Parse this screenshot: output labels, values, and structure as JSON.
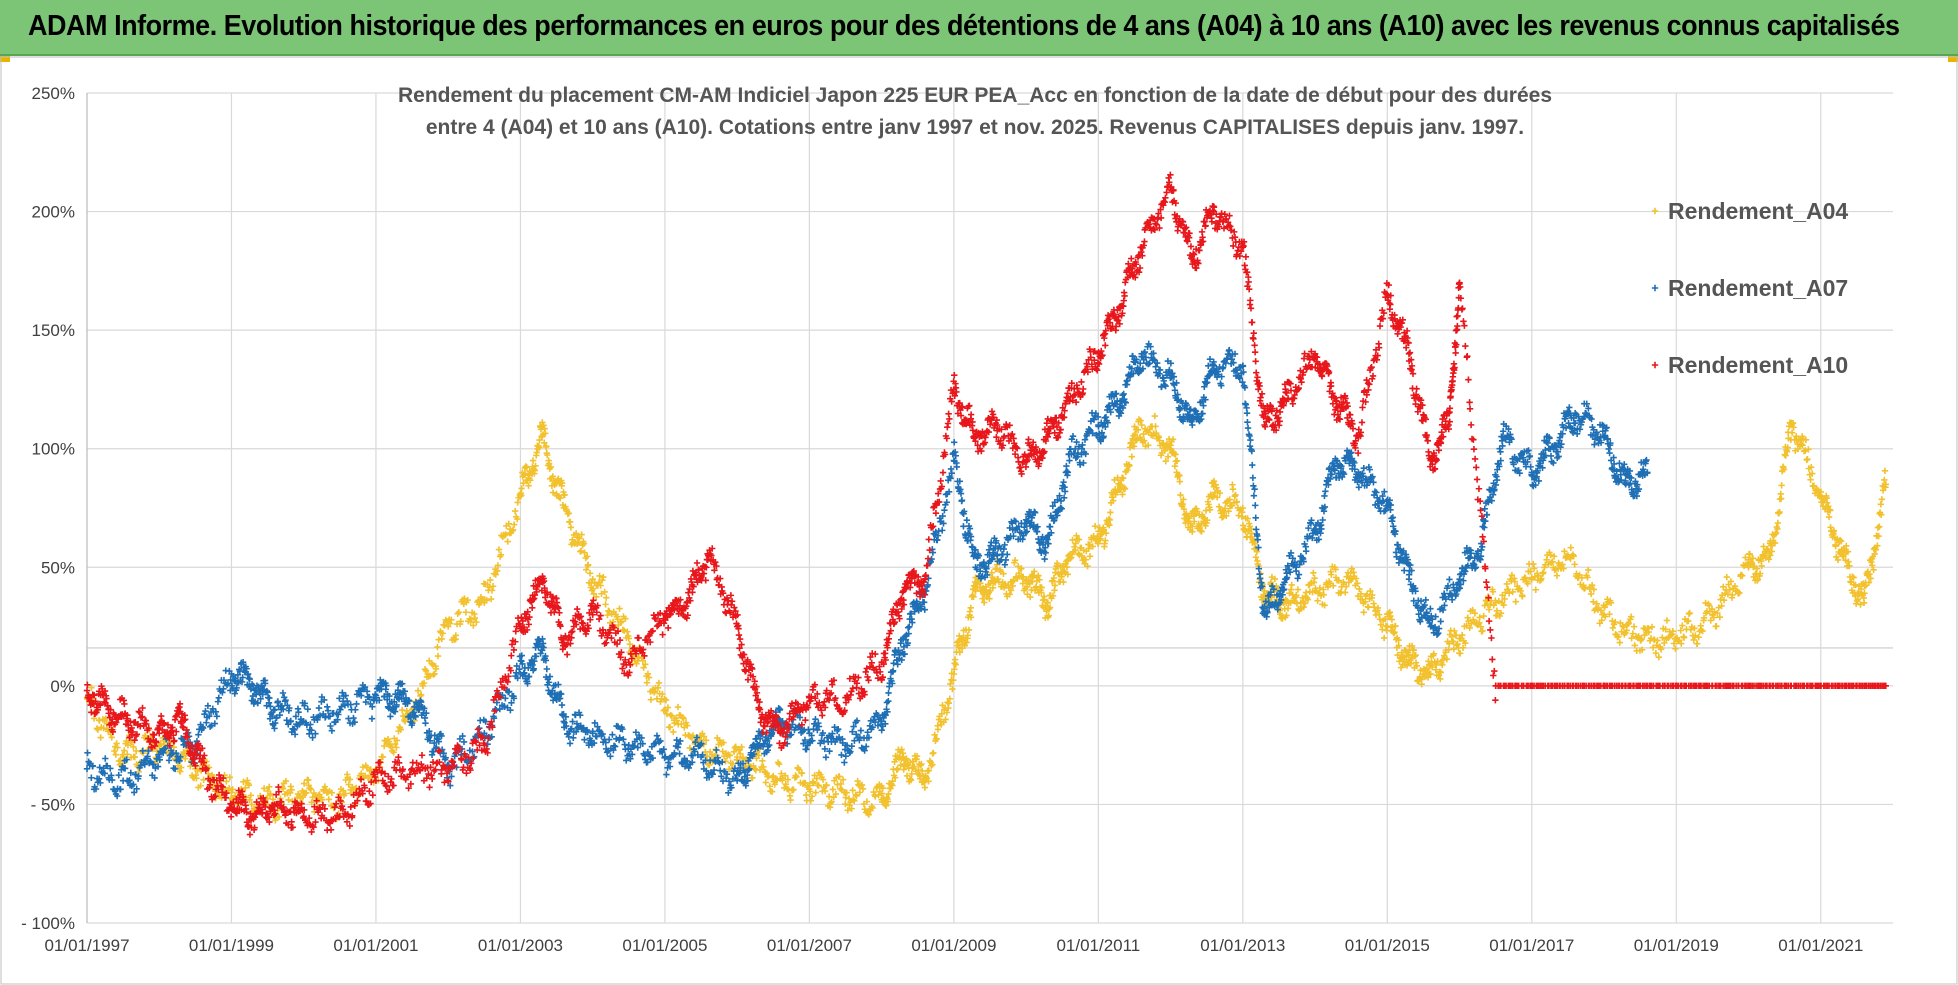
{
  "banner": {
    "title": "ADAM Informe. Evolution historique des performances en euros pour des détentions de 4 ans (A04) à 10 ans (A10) avec les revenus connus capitalisés"
  },
  "colors": {
    "banner_bg": "#7cc576",
    "series_A04": "#f2c12e",
    "series_A07": "#1f6fb5",
    "series_A10": "#e8171b",
    "grid": "#d9d9d9"
  },
  "chart_data": {
    "type": "scatter",
    "title_line1": "Rendement du placement CM-AM Indiciel Japon 225 EUR PEA_Acc en fonction de la date de début pour des durées",
    "title_line2": "entre 4 (A04) et 10 ans (A10). Cotations entre janv 1997 et nov. 2025. Revenus CAPITALISES depuis janv. 1997.",
    "xlabel": "",
    "ylabel": "",
    "x_tick_labels": [
      "01/01/1997",
      "01/01/1999",
      "01/01/2001",
      "01/01/2003",
      "01/01/2005",
      "01/01/2007",
      "01/01/2009",
      "01/01/2011",
      "01/01/2013",
      "01/01/2015",
      "01/01/2017",
      "01/01/2019",
      "01/01/2021"
    ],
    "x_range": [
      "1997-01-01",
      "2022-01-01"
    ],
    "y_tick_labels": [
      "250%",
      "200%",
      "150%",
      "100%",
      "50%",
      "0%",
      "- 50%",
      "- 100%"
    ],
    "ylim": [
      -100,
      250
    ],
    "grid": true,
    "legend_position": "top-right",
    "series": [
      {
        "name": "Rendement_A04",
        "color": "#f2c12e",
        "x": [
          1997.0,
          1997.5,
          1998.0,
          1998.5,
          1999.0,
          1999.5,
          2000.0,
          2000.5,
          2001.0,
          2001.5,
          2002.0,
          2002.5,
          2003.0,
          2003.3,
          2003.6,
          2004.0,
          2004.5,
          2005.0,
          2005.5,
          2006.0,
          2006.5,
          2007.0,
          2007.5,
          2008.0,
          2008.3,
          2008.6,
          2009.0,
          2009.3,
          2009.6,
          2010.0,
          2010.3,
          2010.6,
          2011.0,
          2011.3,
          2011.6,
          2012.0,
          2012.3,
          2012.6,
          2013.0,
          2013.3,
          2013.6,
          2014.0,
          2014.5,
          2015.0,
          2015.3,
          2015.6,
          2016.0,
          2016.5,
          2017.0,
          2017.5,
          2018.0,
          2018.5,
          2019.0,
          2019.5,
          2020.0,
          2020.3,
          2020.6,
          2021.0,
          2021.3,
          2021.6,
          2021.9
        ],
        "values": [
          -5,
          -30,
          -25,
          -35,
          -45,
          -50,
          -45,
          -48,
          -35,
          -10,
          25,
          35,
          80,
          105,
          75,
          45,
          20,
          -10,
          -25,
          -30,
          -38,
          -42,
          -45,
          -48,
          -30,
          -40,
          5,
          40,
          45,
          45,
          35,
          55,
          60,
          85,
          110,
          100,
          65,
          80,
          75,
          40,
          35,
          40,
          45,
          25,
          10,
          5,
          20,
          35,
          45,
          55,
          30,
          20,
          20,
          30,
          50,
          55,
          110,
          80,
          55,
          35,
          85
        ]
      },
      {
        "name": "Rendement_A07",
        "color": "#1f6fb5",
        "x": [
          1997.0,
          1997.5,
          1998.0,
          1998.5,
          1999.0,
          1999.3,
          1999.6,
          2000.0,
          2000.5,
          2001.0,
          2001.3,
          2001.6,
          2002.0,
          2002.5,
          2003.0,
          2003.3,
          2003.6,
          2004.0,
          2004.5,
          2005.0,
          2005.5,
          2006.0,
          2006.3,
          2006.6,
          2007.0,
          2007.5,
          2008.0,
          2008.3,
          2008.6,
          2009.0,
          2009.3,
          2009.6,
          2010.0,
          2010.3,
          2010.6,
          2011.0,
          2011.3,
          2011.6,
          2012.0,
          2012.3,
          2012.6,
          2013.0,
          2013.3,
          2013.6,
          2014.0,
          2014.3,
          2014.6,
          2015.0,
          2015.3,
          2015.6,
          2016.0,
          2016.3,
          2016.6,
          2017.0,
          2017.3,
          2017.6,
          2018.0,
          2018.3,
          2018.6
        ],
        "values": [
          -35,
          -40,
          -30,
          -25,
          5,
          0,
          -10,
          -15,
          -10,
          -5,
          -5,
          -10,
          -35,
          -20,
          5,
          15,
          -15,
          -20,
          -25,
          -30,
          -30,
          -40,
          -25,
          -15,
          -20,
          -25,
          -15,
          20,
          40,
          95,
          50,
          55,
          70,
          60,
          95,
          110,
          120,
          140,
          130,
          110,
          135,
          135,
          30,
          45,
          65,
          95,
          90,
          75,
          45,
          25,
          45,
          60,
          105,
          90,
          100,
          115,
          105,
          85,
          90
        ]
      },
      {
        "name": "Rendement_A10",
        "color": "#e8171b",
        "x": [
          1997.0,
          1997.3,
          1997.6,
          1998.0,
          1998.3,
          1998.6,
          1999.0,
          1999.3,
          1999.6,
          2000.0,
          2000.5,
          2001.0,
          2001.5,
          2002.0,
          2002.5,
          2003.0,
          2003.3,
          2003.6,
          2004.0,
          2004.5,
          2005.0,
          2005.3,
          2005.6,
          2006.0,
          2006.3,
          2006.6,
          2007.0,
          2007.5,
          2008.0,
          2008.3,
          2008.6,
          2009.0,
          2009.3,
          2009.6,
          2010.0,
          2010.3,
          2010.6,
          2011.0,
          2011.3,
          2011.6,
          2012.0,
          2012.3,
          2012.6,
          2013.0,
          2013.3,
          2013.6,
          2014.0,
          2014.3,
          2014.6,
          2015.0,
          2015.3,
          2015.6,
          2015.85,
          2016.0,
          2016.5,
          2017.0,
          2017.5,
          2018.0,
          2018.5,
          2019.0,
          2019.5,
          2020.0,
          2020.5,
          2021.0,
          2021.5,
          2021.9
        ],
        "values": [
          -2,
          -10,
          -15,
          -20,
          -15,
          -35,
          -50,
          -55,
          -50,
          -55,
          -55,
          -40,
          -35,
          -35,
          -25,
          25,
          45,
          20,
          30,
          10,
          30,
          35,
          55,
          25,
          -10,
          -20,
          -5,
          -5,
          10,
          40,
          45,
          125,
          105,
          110,
          95,
          105,
          120,
          140,
          160,
          185,
          210,
          180,
          200,
          185,
          110,
          120,
          140,
          120,
          105,
          165,
          140,
          95,
          110,
          170,
          0,
          0,
          0,
          0,
          0,
          0,
          0,
          0,
          0,
          0,
          0,
          0
        ]
      }
    ]
  }
}
